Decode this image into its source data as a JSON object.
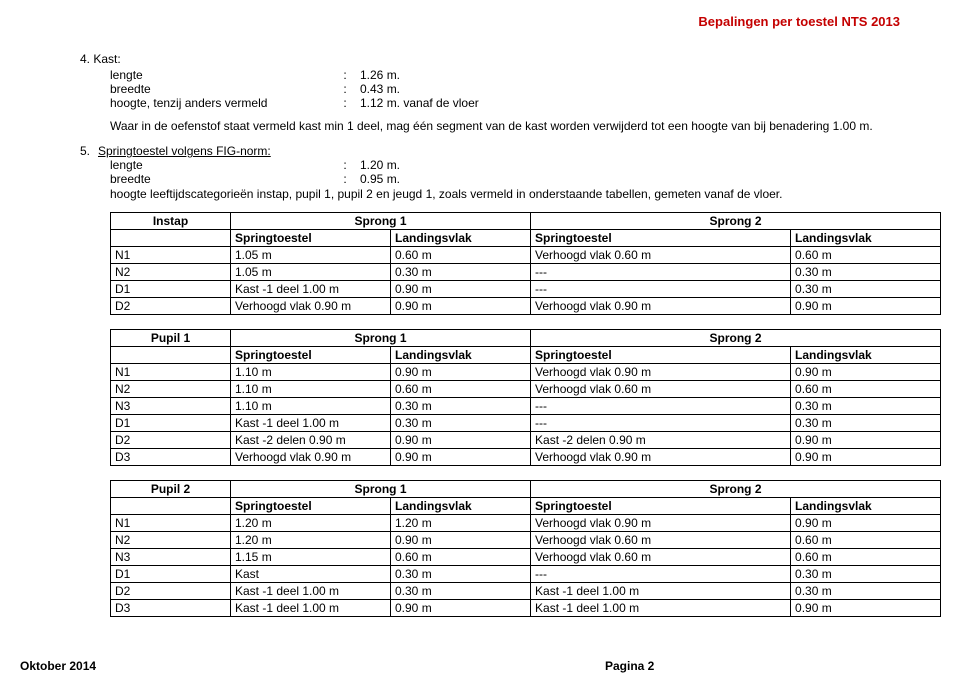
{
  "header": {
    "right": "Bepalingen per toestel NTS 2013"
  },
  "section4": {
    "title": "4.  Kast:",
    "rows": [
      {
        "label": "lengte",
        "val": "1.26 m."
      },
      {
        "label": "breedte",
        "val": "0.43 m."
      },
      {
        "label": "hoogte, tenzij anders vermeld",
        "val": "1.12 m. vanaf de vloer"
      }
    ],
    "para": "Waar in de oefenstof staat vermeld kast min 1 deel, mag één segment van de kast worden verwijderd tot een hoogte van bij benadering 1.00 m."
  },
  "section5": {
    "num": "5.",
    "title": "Springtoestel volgens FIG-norm:",
    "rows": [
      {
        "label": "lengte",
        "val": "1.20 m."
      },
      {
        "label": "breedte",
        "val": "0.95 m."
      }
    ],
    "note": "hoogte leeftijdscategorieën instap, pupil 1, pupil 2 en jeugd 1, zoals vermeld in onderstaande tabellen, gemeten vanaf de vloer."
  },
  "tables": [
    {
      "groupTitle": "Instap",
      "sprong1": "Sprong 1",
      "sprong2": "Sprong 2",
      "h": [
        "Springtoestel",
        "Landingsvlak",
        "Springtoestel",
        "Landingsvlak"
      ],
      "rows": [
        [
          "N1",
          "1.05 m",
          "0.60 m",
          "Verhoogd vlak 0.60 m",
          "0.60 m"
        ],
        [
          "N2",
          "1.05 m",
          "0.30 m",
          "---",
          "0.30 m"
        ],
        [
          "D1",
          "Kast -1 deel 1.00 m",
          "0.90 m",
          "---",
          "0.30 m"
        ],
        [
          "D2",
          "Verhoogd vlak 0.90 m",
          "0.90 m",
          "Verhoogd vlak 0.90 m",
          "0.90 m"
        ]
      ]
    },
    {
      "groupTitle": "Pupil 1",
      "sprong1": "Sprong 1",
      "sprong2": "Sprong 2",
      "h": [
        "Springtoestel",
        "Landingsvlak",
        "Springtoestel",
        "Landingsvlak"
      ],
      "rows": [
        [
          "N1",
          "1.10 m",
          "0.90 m",
          "Verhoogd vlak 0.90 m",
          "0.90 m"
        ],
        [
          "N2",
          "1.10 m",
          "0.60 m",
          "Verhoogd vlak 0.60 m",
          "0.60 m"
        ],
        [
          "N3",
          "1.10 m",
          "0.30 m",
          "---",
          "0.30 m"
        ],
        [
          "D1",
          "Kast -1 deel 1.00 m",
          "0.30 m",
          "---",
          "0.30 m"
        ],
        [
          "D2",
          "Kast -2 delen 0.90 m",
          "0.90 m",
          "Kast -2 delen 0.90 m",
          "0.90 m"
        ],
        [
          "D3",
          "Verhoogd vlak 0.90 m",
          "0.90 m",
          "Verhoogd vlak 0.90 m",
          "0.90 m"
        ]
      ]
    },
    {
      "groupTitle": "Pupil 2",
      "sprong1": "Sprong 1",
      "sprong2": "Sprong 2",
      "h": [
        "Springtoestel",
        "Landingsvlak",
        "Springtoestel",
        "Landingsvlak"
      ],
      "rows": [
        [
          "N1",
          "1.20 m",
          "1.20 m",
          "Verhoogd vlak 0.90 m",
          "0.90 m"
        ],
        [
          "N2",
          "1.20 m",
          "0.90 m",
          "Verhoogd vlak 0.60 m",
          "0.60 m"
        ],
        [
          "N3",
          "1.15 m",
          "0.60 m",
          "Verhoogd vlak 0.60 m",
          "0.60 m"
        ],
        [
          "D1",
          "Kast",
          "0.30 m",
          "---",
          "0.30 m"
        ],
        [
          "D2",
          "Kast -1 deel 1.00 m",
          "0.30 m",
          "Kast -1 deel 1.00 m",
          "0.30 m"
        ],
        [
          "D3",
          "Kast -1 deel 1.00 m",
          "0.90 m",
          "Kast -1 deel 1.00 m",
          "0.90 m"
        ]
      ]
    }
  ],
  "footer": {
    "left": "Oktober 2014",
    "center": "Pagina 2"
  }
}
